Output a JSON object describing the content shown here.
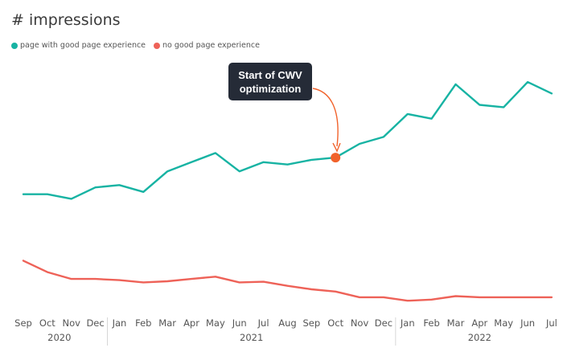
{
  "chart_data": {
    "type": "line",
    "title": "# impressions",
    "x": [
      "Sep",
      "Oct",
      "Nov",
      "Dec",
      "Jan",
      "Feb",
      "Mar",
      "Apr",
      "May",
      "Jun",
      "Jul",
      "Aug",
      "Sep",
      "Oct",
      "Nov",
      "Dec",
      "Jan",
      "Feb",
      "Mar",
      "Apr",
      "May",
      "Jun",
      "Jul"
    ],
    "years": [
      {
        "label": "2020",
        "start": 0,
        "end": 3
      },
      {
        "label": "2021",
        "start": 4,
        "end": 15
      },
      {
        "label": "2022",
        "start": 16,
        "end": 22
      }
    ],
    "series": [
      {
        "name": "page with good page experience",
        "color": "#17b3a3",
        "values": [
          48,
          48,
          46,
          51,
          52,
          49,
          58,
          62,
          66,
          58,
          62,
          61,
          63,
          64,
          70,
          73,
          83,
          81,
          96,
          87,
          86,
          97,
          92
        ]
      },
      {
        "name": "no good page experience",
        "color": "#ee6258",
        "values": [
          19,
          14,
          11,
          11,
          10.5,
          9.5,
          10,
          11,
          12,
          9.5,
          9.8,
          8,
          6.5,
          5.5,
          3,
          3,
          1.5,
          2,
          3.5,
          3,
          3,
          3,
          3
        ]
      }
    ],
    "annotation": {
      "lines": [
        "Start of CWV",
        "optimization"
      ],
      "index": 13,
      "series": 0,
      "color": "#f1622b"
    },
    "grid": false,
    "legend": "top-left"
  }
}
